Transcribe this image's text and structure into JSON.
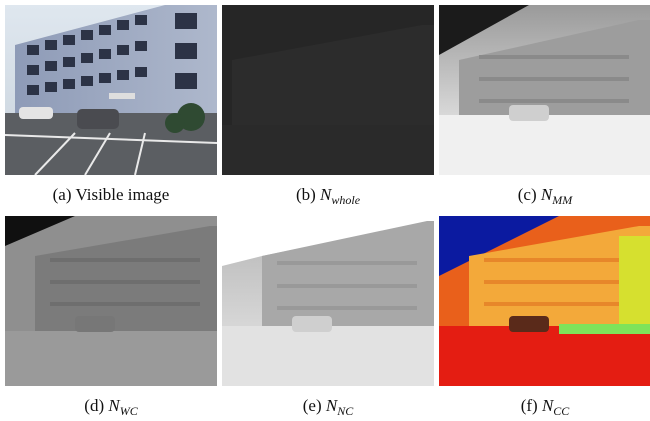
{
  "panels": [
    {
      "id": "a",
      "tag": "(a)",
      "text": "Visible image",
      "symbol": "",
      "subscript": "",
      "style": "visible"
    },
    {
      "id": "b",
      "tag": "(b)",
      "text": "",
      "symbol": "N",
      "subscript": "whole",
      "style": "dark"
    },
    {
      "id": "c",
      "tag": "(c)",
      "text": "",
      "symbol": "N",
      "subscript": "MM",
      "style": "bright"
    },
    {
      "id": "d",
      "tag": "(d)",
      "text": "",
      "symbol": "N",
      "subscript": "WC",
      "style": "mid"
    },
    {
      "id": "e",
      "tag": "(e)",
      "text": "",
      "symbol": "N",
      "subscript": "NC",
      "style": "light"
    },
    {
      "id": "f",
      "tag": "(f)",
      "text": "",
      "symbol": "N",
      "subscript": "CC",
      "style": "colormap"
    }
  ]
}
